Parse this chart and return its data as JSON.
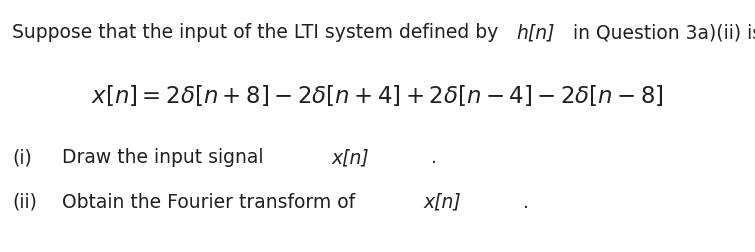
{
  "bg_color": "#ffffff",
  "text_color": "#231f20",
  "font_size_body": 13.5,
  "font_size_eq": 16.5,
  "line1_normal": "Suppose that the input of the LTI system defined by ",
  "line1_italic": "h[n]",
  "line1_end": " in Question 3a)(ii) is",
  "equation": "$x[n] = 2\\delta[n+8] - 2\\delta[n+4] + 2\\delta[n-4] - 2\\delta[n-8]$",
  "item_i_label": "(i)",
  "item_i_normal": "Draw the input signal ",
  "item_i_italic": "x[n]",
  "item_i_end": ".",
  "item_ii_label": "(ii)",
  "item_ii_normal": "Obtain the Fourier transform of ",
  "item_ii_italic": "x[n]",
  "item_ii_end": "."
}
